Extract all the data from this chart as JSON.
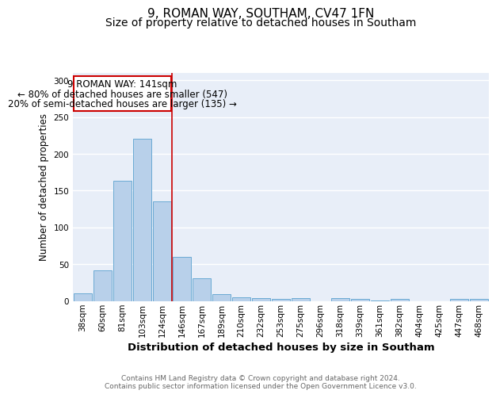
{
  "title1": "9, ROMAN WAY, SOUTHAM, CV47 1FN",
  "title2": "Size of property relative to detached houses in Southam",
  "xlabel": "Distribution of detached houses by size in Southam",
  "ylabel": "Number of detached properties",
  "footnote": "Contains HM Land Registry data © Crown copyright and database right 2024.\nContains public sector information licensed under the Open Government Licence v3.0.",
  "categories": [
    "38sqm",
    "60sqm",
    "81sqm",
    "103sqm",
    "124sqm",
    "146sqm",
    "167sqm",
    "189sqm",
    "210sqm",
    "232sqm",
    "253sqm",
    "275sqm",
    "296sqm",
    "318sqm",
    "339sqm",
    "361sqm",
    "382sqm",
    "404sqm",
    "425sqm",
    "447sqm",
    "468sqm"
  ],
  "values": [
    10,
    42,
    163,
    220,
    135,
    60,
    31,
    9,
    5,
    4,
    3,
    4,
    0,
    4,
    3,
    1,
    3,
    0,
    0,
    3,
    3
  ],
  "bar_color": "#b8d0ea",
  "bar_edge_color": "#6aaad4",
  "background_color": "#e8eef8",
  "grid_color": "#ffffff",
  "redline_label": "9 ROMAN WAY: 141sqm",
  "annotation_line1": "← 80% of detached houses are smaller (547)",
  "annotation_line2": "20% of semi-detached houses are larger (135) →",
  "annotation_box_color": "#ffffff",
  "annotation_box_edge": "#cc0000",
  "redline_color": "#cc0000",
  "ylim": [
    0,
    310
  ],
  "yticks": [
    0,
    50,
    100,
    150,
    200,
    250,
    300
  ],
  "title_fontsize": 11,
  "subtitle_fontsize": 10,
  "annotation_fontsize": 8.5,
  "xlabel_fontsize": 9.5,
  "ylabel_fontsize": 8.5,
  "tick_fontsize": 7.5,
  "footer_fontsize": 6.5,
  "redline_index": 5
}
